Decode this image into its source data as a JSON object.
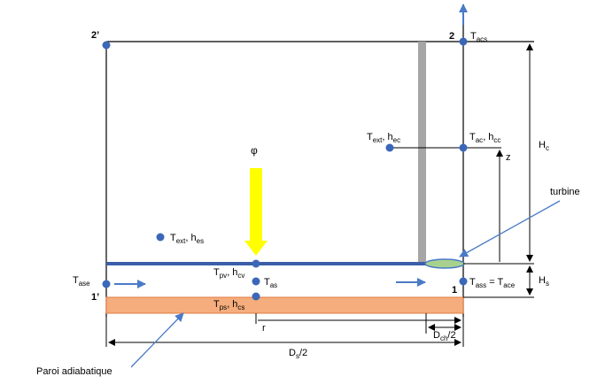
{
  "points": {
    "p1": "1",
    "p1p": "1’",
    "p2": "2",
    "p2p": "2’"
  },
  "labels": {
    "t_acs": {
      "base": "T",
      "sub": "acs"
    },
    "t_ext_hec": {
      "base1": "T",
      "sub1": "ext",
      "mid": ", h",
      "sub2": "ec"
    },
    "t_ac_hcc": {
      "base1": "T",
      "sub1": "ac",
      "mid": ", h",
      "sub2": "cc"
    },
    "phi": "φ",
    "t_ext_hes": {
      "base1": "T",
      "sub1": "ext",
      "mid": ", h",
      "sub2": "es"
    },
    "t_pv_hcv": {
      "base1": "T",
      "sub1": "pv",
      "mid": ", h",
      "sub2": "cv"
    },
    "t_as": {
      "base": "T",
      "sub": "as"
    },
    "t_ps_hcs": {
      "base1": "T",
      "sub1": "ps",
      "mid": ", h",
      "sub2": "cs"
    },
    "t_ase": {
      "base": "T",
      "sub": "ase"
    },
    "t_ass_ace": {
      "base1": "T",
      "sub1": "ass",
      "mid": " = T",
      "sub2": "ace"
    },
    "hc": {
      "base": "H",
      "sub": "c"
    },
    "hs": {
      "base": "H",
      "sub": "s"
    },
    "z": "z",
    "r": "r",
    "dch": {
      "base": "D",
      "sub": "ch",
      "tail": "/2"
    },
    "ds": {
      "base": "D",
      "sub": "s",
      "tail": "/2"
    },
    "turbine": "turbine",
    "paroi": "Paroi adiabatique"
  },
  "colors": {
    "node_fill": "#3b67b8",
    "floor_stroke": "#3b5ea8",
    "arrow_blue": "#4a7bc6",
    "sun_arrow": "#ffff00",
    "chimney": "#a6a6a6",
    "wall_fill": "#f6ad7d",
    "wall_stroke": "#e07a40",
    "turbine_fill": "#a9d18e",
    "turbine_stroke": "#4a7bc6"
  }
}
